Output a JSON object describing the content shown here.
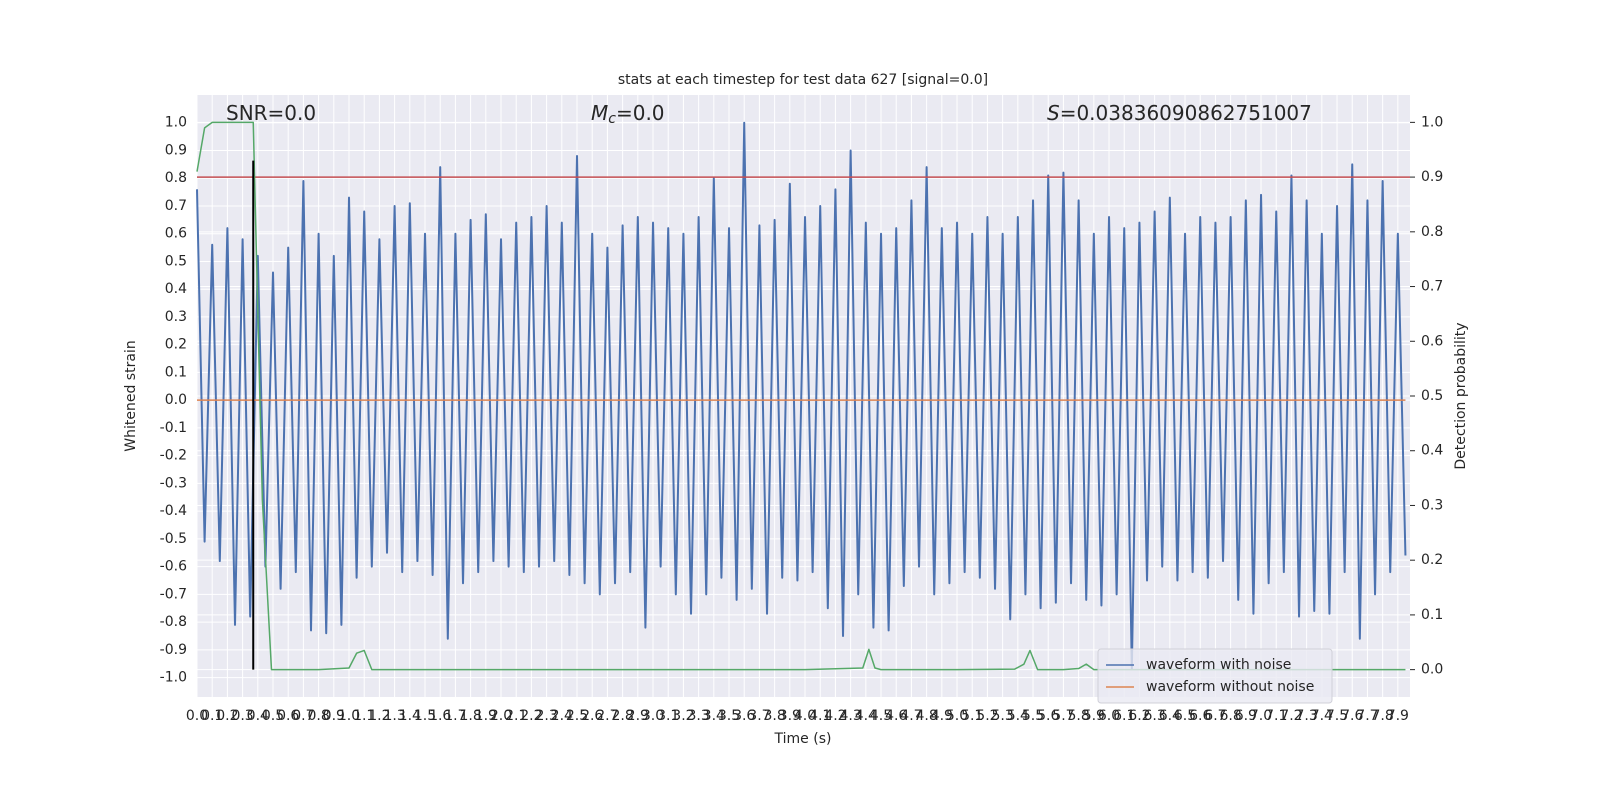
{
  "chart_data": {
    "type": "line",
    "title": "stats at each timestep for test data 627 [signal=0.0]",
    "xlabel": "Time (s)",
    "ylabel": "Whitened strain",
    "y2label": "Detection probability",
    "annotations": [
      {
        "text": "SNR=0.0"
      },
      {
        "symbol": "M",
        "subscript": "c",
        "text": "=0.0"
      },
      {
        "symbol": "S",
        "text": "=0.03836090862751007"
      }
    ],
    "xlim": [
      0,
      7.98
    ],
    "ylim": [
      -1.07,
      1.1
    ],
    "y2lim": [
      -0.05,
      1.05
    ],
    "grid": true,
    "legend": "lower right",
    "xticks": [
      {
        "value": 0,
        "label": "0.0"
      },
      0.1,
      0.2,
      0.3,
      0.4,
      0.5,
      0.6,
      0.7,
      0.8,
      0.9,
      {
        "value": 1,
        "label": "1.0"
      },
      1.1,
      1.2,
      1.3,
      1.4,
      1.5,
      1.6,
      1.7,
      1.8,
      1.9,
      {
        "value": 2,
        "label": "2.0"
      },
      2.1,
      2.2,
      2.3,
      2.4,
      2.5,
      2.6,
      2.7,
      2.8,
      2.9,
      {
        "value": 3,
        "label": "3.0"
      },
      3.1,
      3.2,
      3.3,
      3.4,
      3.5,
      3.6,
      3.7,
      3.8,
      3.9,
      {
        "value": 4,
        "label": "4.0"
      },
      4.1,
      4.2,
      4.3,
      4.4,
      4.5,
      4.6,
      4.7,
      4.8,
      4.9,
      {
        "value": 5,
        "label": "5.0"
      },
      5.1,
      5.2,
      5.3,
      5.4,
      5.5,
      5.6,
      5.7,
      5.8,
      5.9,
      {
        "value": 6,
        "label": "6.0"
      },
      6.1,
      6.2,
      6.3,
      6.4,
      6.5,
      6.6,
      6.7,
      6.8,
      6.9,
      {
        "value": 7,
        "label": "7.0"
      },
      7.1,
      7.2,
      7.3,
      7.4,
      7.5,
      7.6,
      7.7,
      7.8,
      7.9
    ],
    "yticks": [
      {
        "value": -1,
        "label": "-1.0"
      },
      -0.9,
      -0.8,
      -0.7,
      -0.6,
      -0.5,
      -0.4,
      -0.3,
      -0.2,
      -0.1,
      {
        "value": 0,
        "label": "0.0"
      },
      0.1,
      0.2,
      0.3,
      0.4,
      0.5,
      0.6,
      0.7,
      0.8,
      0.9,
      {
        "value": 1,
        "label": "1.0"
      }
    ],
    "y2ticks": [
      {
        "value": 0,
        "label": "0.0"
      },
      0.1,
      0.2,
      0.3,
      0.4,
      0.5,
      0.6,
      0.7,
      0.8,
      0.9,
      {
        "value": 1,
        "label": "1.0"
      }
    ],
    "series": [
      {
        "name": "waveform with noise",
        "color": "#4c72b0",
        "x": [
          0,
          0.05,
          0.1,
          0.15,
          0.2,
          0.25,
          0.3,
          0.35,
          0.4,
          0.45,
          0.5,
          0.55,
          0.6,
          0.65,
          0.7,
          0.75,
          0.8,
          0.85,
          0.9,
          0.95,
          1,
          1.05,
          1.1,
          1.15,
          1.2,
          1.25,
          1.3,
          1.35,
          1.4,
          1.45,
          1.5,
          1.55,
          1.6,
          1.65,
          1.7,
          1.75,
          1.8,
          1.85,
          1.9,
          1.95,
          2,
          2.05,
          2.1,
          2.15,
          2.2,
          2.25,
          2.3,
          2.35,
          2.4,
          2.45,
          2.5,
          2.55,
          2.6,
          2.65,
          2.7,
          2.75,
          2.8,
          2.85,
          2.9,
          2.95,
          3,
          3.05,
          3.1,
          3.15,
          3.2,
          3.25,
          3.3,
          3.35,
          3.4,
          3.45,
          3.5,
          3.55,
          3.6,
          3.65,
          3.7,
          3.75,
          3.8,
          3.85,
          3.9,
          3.95,
          4,
          4.05,
          4.1,
          4.15,
          4.2,
          4.25,
          4.3,
          4.35,
          4.4,
          4.45,
          4.5,
          4.55,
          4.6,
          4.65,
          4.7,
          4.75,
          4.8,
          4.85,
          4.9,
          4.95,
          5,
          5.05,
          5.1,
          5.15,
          5.2,
          5.25,
          5.3,
          5.35,
          5.4,
          5.45,
          5.5,
          5.55,
          5.6,
          5.65,
          5.7,
          5.75,
          5.8,
          5.85,
          5.9,
          5.95,
          6,
          6.05,
          6.1,
          6.15,
          6.2,
          6.25,
          6.3,
          6.35,
          6.4,
          6.45,
          6.5,
          6.55,
          6.6,
          6.65,
          6.7,
          6.75,
          6.8,
          6.85,
          6.9,
          6.95,
          7,
          7.05,
          7.1,
          7.15,
          7.2,
          7.25,
          7.3,
          7.35,
          7.4,
          7.45,
          7.5,
          7.55,
          7.6,
          7.65,
          7.7,
          7.75,
          7.8,
          7.85,
          7.9,
          7.95
        ],
        "values": [
          0.76,
          -0.51,
          0.56,
          -0.58,
          0.62,
          -0.81,
          0.58,
          -0.78,
          0.52,
          -0.6,
          0.46,
          -0.68,
          0.55,
          -0.62,
          0.79,
          -0.83,
          0.6,
          -0.84,
          0.52,
          -0.81,
          0.73,
          -0.64,
          0.68,
          -0.6,
          0.58,
          -0.55,
          0.7,
          -0.62,
          0.71,
          -0.58,
          0.6,
          -0.63,
          0.84,
          -0.86,
          0.6,
          -0.66,
          0.65,
          -0.62,
          0.67,
          -0.58,
          0.58,
          -0.6,
          0.64,
          -0.62,
          0.66,
          -0.6,
          0.7,
          -0.58,
          0.64,
          -0.63,
          0.88,
          -0.66,
          0.6,
          -0.7,
          0.55,
          -0.66,
          0.63,
          -0.62,
          0.66,
          -0.82,
          0.64,
          -0.6,
          0.62,
          -0.7,
          0.6,
          -0.77,
          0.66,
          -0.7,
          0.8,
          -0.64,
          0.62,
          -0.72,
          1.0,
          -0.68,
          0.63,
          -0.77,
          0.65,
          -0.64,
          0.78,
          -0.65,
          0.66,
          -0.62,
          0.7,
          -0.75,
          0.76,
          -0.85,
          0.9,
          -0.7,
          0.64,
          -0.82,
          0.6,
          -0.83,
          0.62,
          -0.67,
          0.72,
          -0.6,
          0.84,
          -0.7,
          0.62,
          -0.66,
          0.64,
          -0.62,
          0.6,
          -0.64,
          0.66,
          -0.68,
          0.6,
          -0.79,
          0.66,
          -0.7,
          0.72,
          -0.75,
          0.81,
          -0.73,
          0.82,
          -0.66,
          0.72,
          -0.72,
          0.6,
          -0.74,
          0.66,
          -0.7,
          0.62,
          -0.97,
          0.64,
          -0.65,
          0.68,
          -0.6,
          0.73,
          -0.65,
          0.6,
          -0.62,
          0.66,
          -0.64,
          0.64,
          -0.58,
          0.66,
          -0.72,
          0.72,
          -0.77,
          0.74,
          -0.66,
          0.68,
          -0.62,
          0.81,
          -0.78,
          0.72,
          -0.76,
          0.6,
          -0.77,
          0.7,
          -0.62,
          0.85,
          -0.86,
          0.72,
          -0.7,
          0.79,
          -0.62,
          0.6,
          -0.56
        ]
      },
      {
        "name": "waveform without noise",
        "color": "#dd8452",
        "x": [
          0,
          7.95
        ],
        "values": [
          0,
          0
        ]
      },
      {
        "color": "#55a868",
        "axis": "y2",
        "x": [
          0,
          0.05,
          0.1,
          0.2,
          0.3,
          0.37,
          0.43,
          0.49,
          0.6,
          0.8,
          1.0,
          1.05,
          1.1,
          1.15,
          1.2,
          1.5,
          2.0,
          3.0,
          4.0,
          4.38,
          4.42,
          4.46,
          4.5,
          5.0,
          5.38,
          5.44,
          5.48,
          5.53,
          5.7,
          5.8,
          5.85,
          5.9,
          6.0,
          7.0,
          7.95
        ],
        "values": [
          0.91,
          0.99,
          1.0,
          1.0,
          1.0,
          1.0,
          0.31,
          0,
          0,
          0,
          0.003,
          0.03,
          0.035,
          0,
          0,
          0,
          0,
          0,
          0,
          0.003,
          0.037,
          0.003,
          0,
          0,
          0.001,
          0.01,
          0.035,
          0,
          0,
          0.002,
          0.01,
          0,
          0,
          0,
          0
        ]
      }
    ],
    "hlines": [
      {
        "value": 0.9,
        "axis": "y2",
        "color": "#c44e52"
      }
    ],
    "vlines": [
      {
        "value": 0.37,
        "ymin": 0,
        "ymax": 0.93,
        "axis": "y2",
        "color": "#000000"
      }
    ]
  }
}
